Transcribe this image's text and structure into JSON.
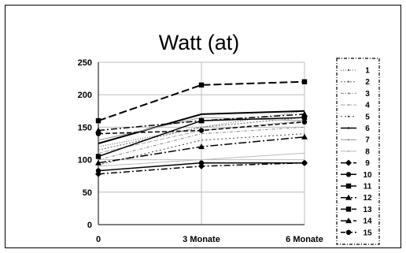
{
  "chart_data": {
    "type": "line",
    "title": "Watt (at)",
    "xlabel": "",
    "ylabel": "",
    "categories": [
      "0",
      "3 Monate",
      "6 Monate"
    ],
    "ylim": [
      0,
      250
    ],
    "yticks": [
      "0",
      "50",
      "100",
      "150",
      "200",
      "250"
    ],
    "grid": true,
    "legend_position": "right",
    "series": [
      {
        "name": "1",
        "values": [
          120,
          150,
          175
        ],
        "color": "#555555",
        "dash": "1,2",
        "marker": "none",
        "width": 1
      },
      {
        "name": "2",
        "values": [
          115,
          150,
          165
        ],
        "color": "#666666",
        "dash": "2,2",
        "marker": "none",
        "width": 1
      },
      {
        "name": "3",
        "values": [
          100,
          140,
          150
        ],
        "color": "#888888",
        "dash": "4,2,1,2",
        "marker": "none",
        "width": 1
      },
      {
        "name": "4",
        "values": [
          110,
          145,
          160
        ],
        "color": "#aaaaaa",
        "dash": "6,2",
        "marker": "none",
        "width": 1
      },
      {
        "name": "5",
        "values": [
          92,
          130,
          140
        ],
        "color": "#444444",
        "dash": "2,3",
        "marker": "none",
        "width": 1
      },
      {
        "name": "6",
        "values": [
          125,
          170,
          175
        ],
        "color": "#000000",
        "dash": "",
        "marker": "none",
        "width": 2
      },
      {
        "name": "7",
        "values": [
          130,
          165,
          160
        ],
        "color": "#999999",
        "dash": "",
        "marker": "none",
        "width": 1
      },
      {
        "name": "8",
        "values": [
          90,
          100,
          110
        ],
        "color": "#bbbbbb",
        "dash": "",
        "marker": "none",
        "width": 1
      },
      {
        "name": "9",
        "values": [
          78,
          90,
          95
        ],
        "color": "#000000",
        "dash": "8,3,2,3",
        "marker": "diamond",
        "width": 1.5
      },
      {
        "name": "10",
        "values": [
          83,
          95,
          95
        ],
        "color": "#000000",
        "dash": "",
        "marker": "circle",
        "width": 1.5
      },
      {
        "name": "11",
        "values": [
          105,
          160,
          165
        ],
        "color": "#000000",
        "dash": "",
        "marker": "square",
        "width": 1.5
      },
      {
        "name": "12",
        "values": [
          95,
          120,
          135
        ],
        "color": "#000000",
        "dash": "10,3,2,3",
        "marker": "triangle",
        "width": 1.5
      },
      {
        "name": "13",
        "values": [
          160,
          215,
          220
        ],
        "color": "#000000",
        "dash": "10,4",
        "marker": "square",
        "width": 2
      },
      {
        "name": "14",
        "values": [
          145,
          160,
          170
        ],
        "color": "#000000",
        "dash": "8,3,2,3",
        "marker": "triangle",
        "width": 1.5
      },
      {
        "name": "15",
        "values": [
          140,
          145,
          158
        ],
        "color": "#000000",
        "dash": "6,3",
        "marker": "circle",
        "width": 1.5
      }
    ]
  }
}
